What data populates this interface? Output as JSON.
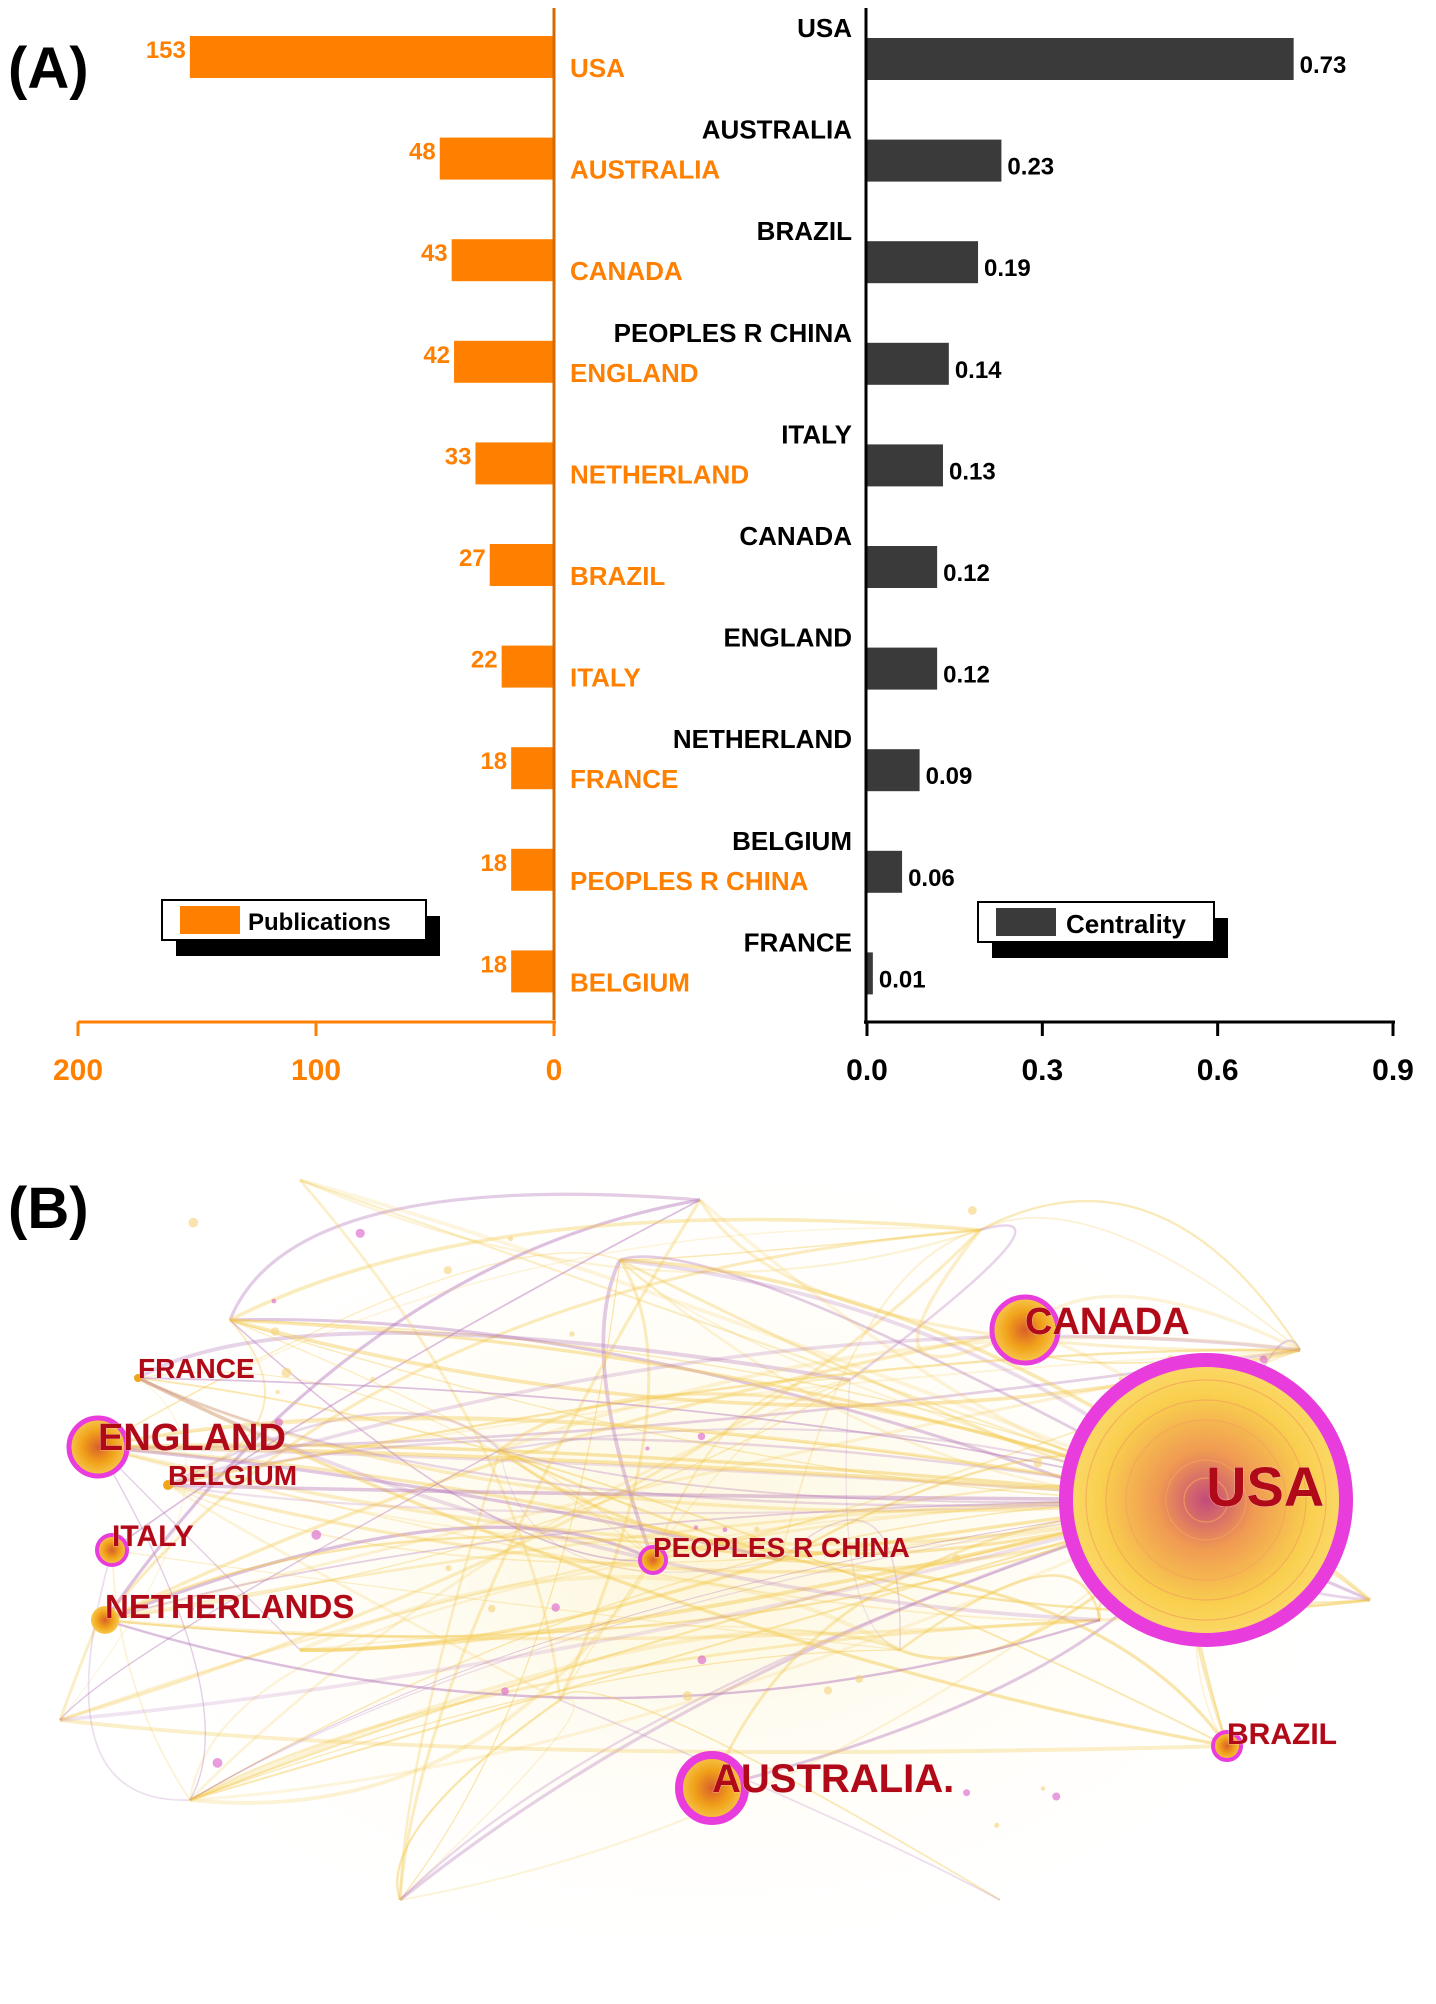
{
  "panel_a": {
    "label": "(A)"
  },
  "panel_b": {
    "label": "(B)"
  },
  "colors": {
    "publications": "#ff8000",
    "centrality": "#3a3a3a",
    "axis_orange": "#d46a00",
    "node_ring": "#e83cdc",
    "node_core": "#f0a51c",
    "net_label": "#b00a18"
  },
  "chart_data": [
    {
      "type": "bar",
      "orientation": "horizontal",
      "direction": "leftward",
      "title": "",
      "legend": {
        "label": "Publications",
        "placement": "bottom-left"
      },
      "categories": [
        "USA",
        "AUSTRALIA",
        "CANADA",
        "ENGLAND",
        "NETHERLAND",
        "BRAZIL",
        "ITALY",
        "FRANCE",
        "PEOPLES R CHINA",
        "BELGIUM"
      ],
      "values": [
        153,
        48,
        43,
        42,
        33,
        27,
        22,
        18,
        18,
        18
      ],
      "value_labels": [
        "153",
        "48",
        "43",
        "42",
        "33",
        "27",
        "22",
        "18",
        "18",
        "18"
      ],
      "xlim": [
        0,
        200
      ],
      "ticks": [
        200,
        100,
        0
      ],
      "tick_labels": [
        "200",
        "100",
        "0"
      ]
    },
    {
      "type": "bar",
      "orientation": "horizontal",
      "title": "",
      "legend": {
        "label": "Centrality",
        "placement": "bottom-left"
      },
      "categories": [
        "USA",
        "AUSTRALIA",
        "BRAZIL",
        "PEOPLES R CHINA",
        "ITALY",
        "CANADA",
        "ENGLAND",
        "NETHERLAND",
        "BELGIUM",
        "FRANCE"
      ],
      "values": [
        0.73,
        0.23,
        0.19,
        0.14,
        0.13,
        0.12,
        0.12,
        0.09,
        0.06,
        0.01
      ],
      "value_labels": [
        "0.73",
        "0.23",
        "0.19",
        "0.14",
        "0.13",
        "0.12",
        "0.12",
        "0.09",
        "0.06",
        "0.01"
      ],
      "xlim": [
        0,
        0.9
      ],
      "ticks": [
        0,
        0.3,
        0.6,
        0.9
      ],
      "tick_labels": [
        "0.0",
        "0.3",
        "0.6",
        "0.9"
      ]
    }
  ],
  "network": {
    "nodes": [
      {
        "id": "usa",
        "label": "USA"
      },
      {
        "id": "canada",
        "label": "CANADA"
      },
      {
        "id": "england",
        "label": "ENGLAND"
      },
      {
        "id": "france",
        "label": "FRANCE"
      },
      {
        "id": "belgium",
        "label": "BELGIUM"
      },
      {
        "id": "italy",
        "label": "ITALY"
      },
      {
        "id": "netherlands",
        "label": "NETHERLANDS"
      },
      {
        "id": "china",
        "label": "PEOPLES R CHINA"
      },
      {
        "id": "australia",
        "label": "AUSTRALIA."
      },
      {
        "id": "brazil",
        "label": "BRAZIL"
      }
    ]
  }
}
